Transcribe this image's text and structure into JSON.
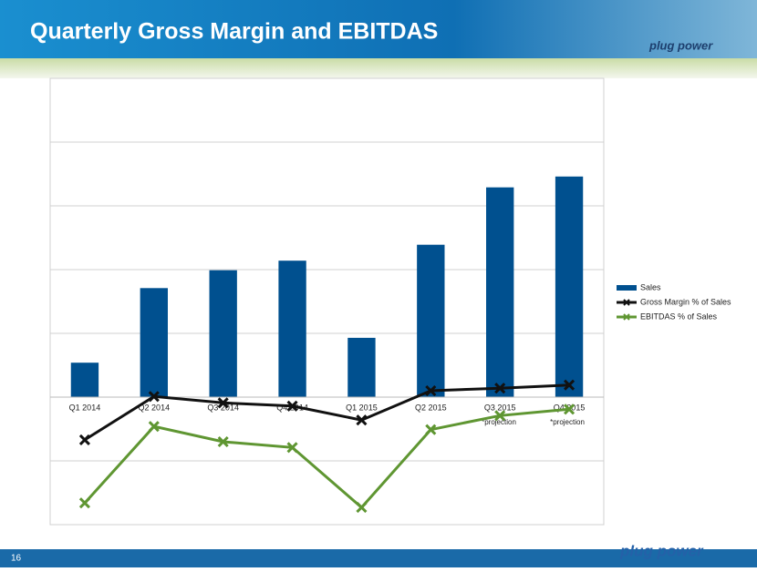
{
  "slide": {
    "page_number": "16",
    "logo": "plug power"
  },
  "chart_data": {
    "type": "bar-line",
    "title": "Quarterly Gross Margin and EBITDAS",
    "categories": [
      "Q1 2014",
      "Q2 2014",
      "Q3 2014",
      "Q4 2014",
      "Q1 2015",
      "Q2 2015",
      "Q3 2015",
      "Q4 2015"
    ],
    "series": [
      {
        "name": "Sales",
        "type": "bar",
        "color": "#00508f",
        "values": [
          0.54,
          1.71,
          1.99,
          2.14,
          0.93,
          2.39,
          3.29,
          3.46
        ]
      },
      {
        "name": "Gross Margin % of Sales",
        "type": "line",
        "color": "#111111",
        "values": [
          -0.67,
          0.01,
          -0.09,
          -0.14,
          -0.36,
          0.1,
          0.14,
          0.19
        ]
      },
      {
        "name": "EBITDAS % of Sales",
        "type": "line",
        "color": "#5f9632",
        "values": [
          -1.66,
          -0.46,
          -0.7,
          -0.79,
          -1.73,
          -0.51,
          -0.29,
          -0.19
        ]
      }
    ],
    "annotations": [
      "*projection",
      "*projection"
    ],
    "ylim": [
      -2,
      5
    ],
    "yticks": [
      -2,
      -1,
      0,
      1,
      2,
      3,
      4,
      5
    ],
    "grid": true,
    "legend": "right"
  }
}
